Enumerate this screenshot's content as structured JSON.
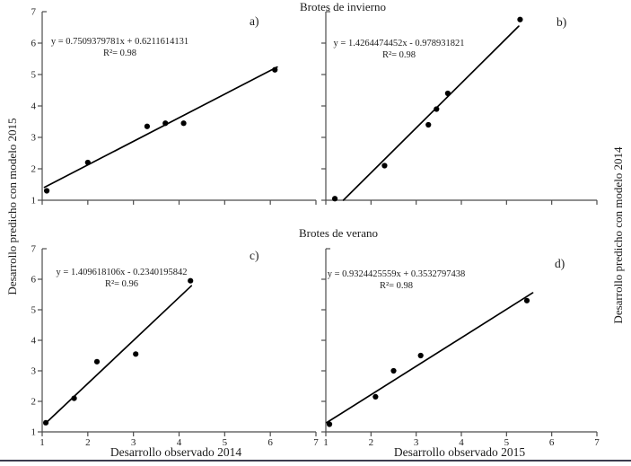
{
  "figure": {
    "top_title": "Brotes de invierno",
    "bottom_title": "Brotes de verano",
    "left_axis_label": "Desarrollo predicho con modelo 2015",
    "right_axis_label": "Desarrollo predicho con modelo 2014",
    "x_label_left": "Desarrollo observado 2014",
    "x_label_right": "Desarrollo observado 2015"
  },
  "colors": {
    "background": "#ffffff",
    "axis": "#4c4c4c",
    "data": "#000000",
    "text": "#1c1c1c",
    "bottom_rule": "#3c3c4e"
  },
  "chart_data": [
    {
      "id": "a",
      "type": "scatter",
      "panel_label": "a)",
      "group_title": "Brotes de invierno",
      "equation": "y = 0.7509379781x + 0.6211614131",
      "r_squared": "R²= 0.98",
      "slope": 0.7509379781,
      "intercept": 0.6211614131,
      "points": [
        [
          1.1,
          1.3
        ],
        [
          2.0,
          2.2
        ],
        [
          3.3,
          3.35
        ],
        [
          3.7,
          3.45
        ],
        [
          4.1,
          3.45
        ],
        [
          6.1,
          5.15
        ]
      ],
      "line_x_range": [
        1.05,
        6.15
      ],
      "xlim": [
        1,
        7
      ],
      "ylim": [
        1,
        7
      ],
      "xticks": [
        1,
        2,
        3,
        4,
        5,
        6,
        7
      ],
      "yticks": [
        1,
        2,
        3,
        4,
        5,
        6,
        7
      ],
      "show_x_tick_labels": false,
      "show_y_tick_labels": true
    },
    {
      "id": "b",
      "type": "scatter",
      "panel_label": "b)",
      "group_title": "Brotes de invierno",
      "equation": "y = 1.4264474452x - 0.978931821",
      "r_squared": "R²= 0.98",
      "slope": 1.4264474452,
      "intercept": -0.978931821,
      "points": [
        [
          1.2,
          1.05
        ],
        [
          2.3,
          2.1
        ],
        [
          3.27,
          3.4
        ],
        [
          3.45,
          3.9
        ],
        [
          3.7,
          4.4
        ],
        [
          5.3,
          6.75
        ]
      ],
      "line_x_range": [
        1.39,
        5.27
      ],
      "xlim": [
        1,
        7
      ],
      "ylim": [
        1,
        7
      ],
      "xticks": [
        1,
        2,
        3,
        4,
        5,
        6,
        7
      ],
      "yticks": [
        1,
        2,
        3,
        4,
        5,
        6,
        7
      ],
      "show_x_tick_labels": false,
      "show_y_tick_labels": false
    },
    {
      "id": "c",
      "type": "scatter",
      "panel_label": "c)",
      "group_title": "Brotes de verano",
      "equation": "y = 1.409618106x - 0.2340195842",
      "r_squared": "R²= 0.96",
      "slope": 1.409618106,
      "intercept": -0.2340195842,
      "points": [
        [
          1.08,
          1.3
        ],
        [
          1.7,
          2.1
        ],
        [
          2.2,
          3.3
        ],
        [
          3.05,
          3.55
        ],
        [
          4.25,
          5.95
        ]
      ],
      "line_x_range": [
        1.05,
        4.27
      ],
      "xlim": [
        1,
        7
      ],
      "ylim": [
        1,
        7
      ],
      "xticks": [
        1,
        2,
        3,
        4,
        5,
        6,
        7
      ],
      "yticks": [
        1,
        2,
        3,
        4,
        5,
        6,
        7
      ],
      "show_x_tick_labels": true,
      "show_y_tick_labels": true
    },
    {
      "id": "d",
      "type": "scatter",
      "panel_label": "d)",
      "group_title": "Brotes de verano",
      "equation": "y = 0.9324425559x + 0.3532797438",
      "r_squared": "R²= 0.98",
      "slope": 0.9324425559,
      "intercept": 0.3532797438,
      "points": [
        [
          1.08,
          1.25
        ],
        [
          2.1,
          2.15
        ],
        [
          2.5,
          3.0
        ],
        [
          3.1,
          3.5
        ],
        [
          5.45,
          5.3
        ]
      ],
      "line_x_range": [
        1.02,
        5.58
      ],
      "xlim": [
        1,
        7
      ],
      "ylim": [
        1,
        7
      ],
      "xticks": [
        1,
        2,
        3,
        4,
        5,
        6,
        7
      ],
      "yticks": [
        1,
        2,
        3,
        4,
        5,
        6,
        7
      ],
      "show_x_tick_labels": true,
      "show_y_tick_labels": false
    }
  ]
}
